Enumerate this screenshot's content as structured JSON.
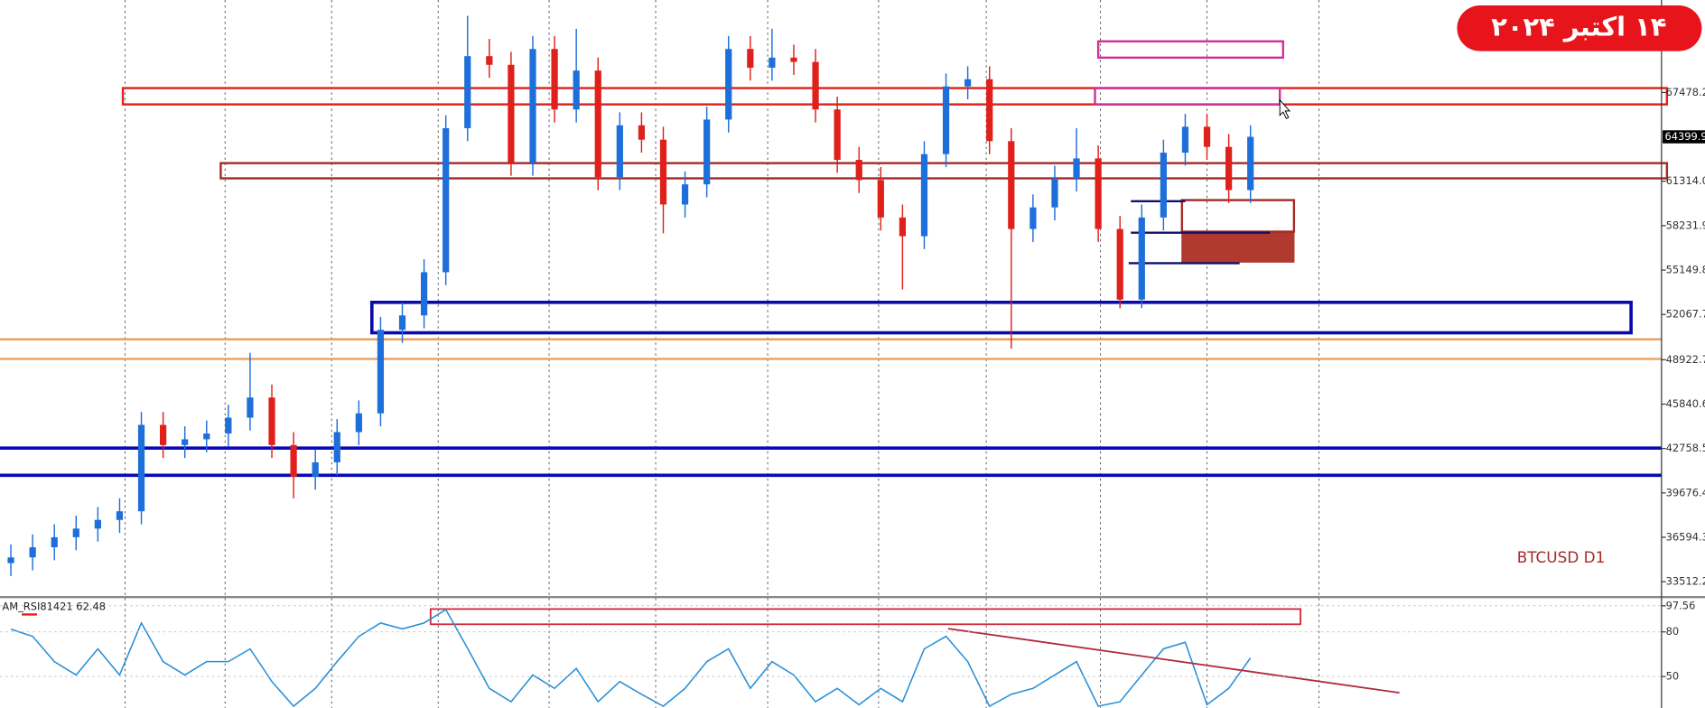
{
  "banner": "۱۴ اکتبر ۲۰۲۴",
  "chart_data": [
    {
      "type": "candlestick",
      "title": "BTCUSD D1",
      "up_color": "#1e6fd9",
      "down_color": "#e0201b",
      "ylim": [
        32520,
        73900
      ],
      "yticks": [
        {
          "value": 67478.2,
          "label": "67478.2"
        },
        {
          "value": 61314,
          "label": "61314.0"
        },
        58231.9,
        55149.8,
        52067.7,
        48922.7,
        45840.6,
        42758.5,
        39676.4,
        36594.3,
        33512.2
      ],
      "current_price": 64399.9,
      "open": [
        34800,
        35200,
        35900,
        36600,
        37200,
        37800,
        38400,
        44400,
        43000,
        43400,
        43800,
        44900,
        46300,
        43000,
        40800,
        41800,
        43900,
        45200,
        51000,
        52000,
        55000,
        65000,
        70000,
        69400,
        62600,
        70500,
        66300,
        69000,
        61600,
        65200,
        64200,
        59700,
        61100,
        65600,
        70500,
        69200,
        69900,
        69600,
        66300,
        62800,
        61400,
        58800,
        57500,
        63200,
        67900,
        68400,
        64100,
        58000,
        59500,
        61500,
        62900,
        58000,
        53100,
        58800,
        63300,
        65100,
        63700,
        60700
      ],
      "high": [
        36100,
        36800,
        37500,
        38100,
        38700,
        39300,
        45300,
        45300,
        44300,
        44700,
        45800,
        49400,
        47200,
        43900,
        42700,
        44800,
        46100,
        51900,
        52900,
        55900,
        65900,
        72800,
        71200,
        70300,
        71400,
        71400,
        71900,
        69900,
        66100,
        66100,
        65100,
        62000,
        66500,
        71400,
        71400,
        71900,
        70800,
        70500,
        67200,
        63700,
        62300,
        59700,
        64100,
        68800,
        69300,
        69300,
        65000,
        60400,
        62400,
        65000,
        63800,
        58900,
        59700,
        64200,
        66000,
        66000,
        64600,
        65200
      ],
      "low": [
        33900,
        34300,
        35000,
        35700,
        36300,
        36900,
        37500,
        42100,
        42100,
        42500,
        42900,
        44000,
        42100,
        39300,
        39900,
        40900,
        43000,
        44300,
        50100,
        51100,
        54100,
        64100,
        68500,
        61700,
        61700,
        65400,
        65400,
        60700,
        60700,
        63300,
        57700,
        58800,
        60200,
        64700,
        68300,
        68300,
        68700,
        65400,
        61900,
        60500,
        57900,
        53800,
        56600,
        62300,
        67000,
        63200,
        49700,
        57100,
        58600,
        60600,
        57100,
        52500,
        52500,
        57900,
        62400,
        62800,
        59800,
        59800
      ],
      "close": [
        35200,
        35900,
        36600,
        37200,
        37800,
        38400,
        44400,
        43000,
        43400,
        43800,
        44900,
        46300,
        43000,
        40800,
        41800,
        43900,
        45200,
        51000,
        52000,
        55000,
        65000,
        70000,
        69400,
        62600,
        70500,
        66300,
        69000,
        61600,
        65200,
        64200,
        59700,
        61100,
        65600,
        70500,
        69200,
        69900,
        69600,
        66300,
        62800,
        61400,
        58800,
        57500,
        63200,
        67900,
        68400,
        64100,
        58000,
        59500,
        61500,
        62900,
        58000,
        53100,
        58800,
        63300,
        65100,
        63700,
        60700,
        64400
      ]
    },
    {
      "type": "line",
      "title": "AM_RSI81421 62.48",
      "color": "#2a8fd8",
      "ylim": [
        28.8,
        102.7
      ],
      "yticks": [
        97.56,
        80,
        50
      ],
      "values": [
        81.8,
        77,
        60,
        51,
        68.6,
        51,
        86,
        60,
        51,
        60,
        60,
        68.6,
        46.6,
        30,
        42,
        60,
        77,
        86,
        82,
        86,
        95,
        69,
        42,
        33,
        51,
        42,
        55.4,
        33,
        46.6,
        38,
        30,
        42,
        60,
        68.6,
        42,
        60,
        51,
        33,
        42,
        31,
        42,
        33,
        68.6,
        77,
        60,
        30,
        38,
        42,
        51,
        60,
        30,
        33,
        51,
        68.6,
        73,
        31,
        42,
        62.48
      ]
    }
  ]
}
